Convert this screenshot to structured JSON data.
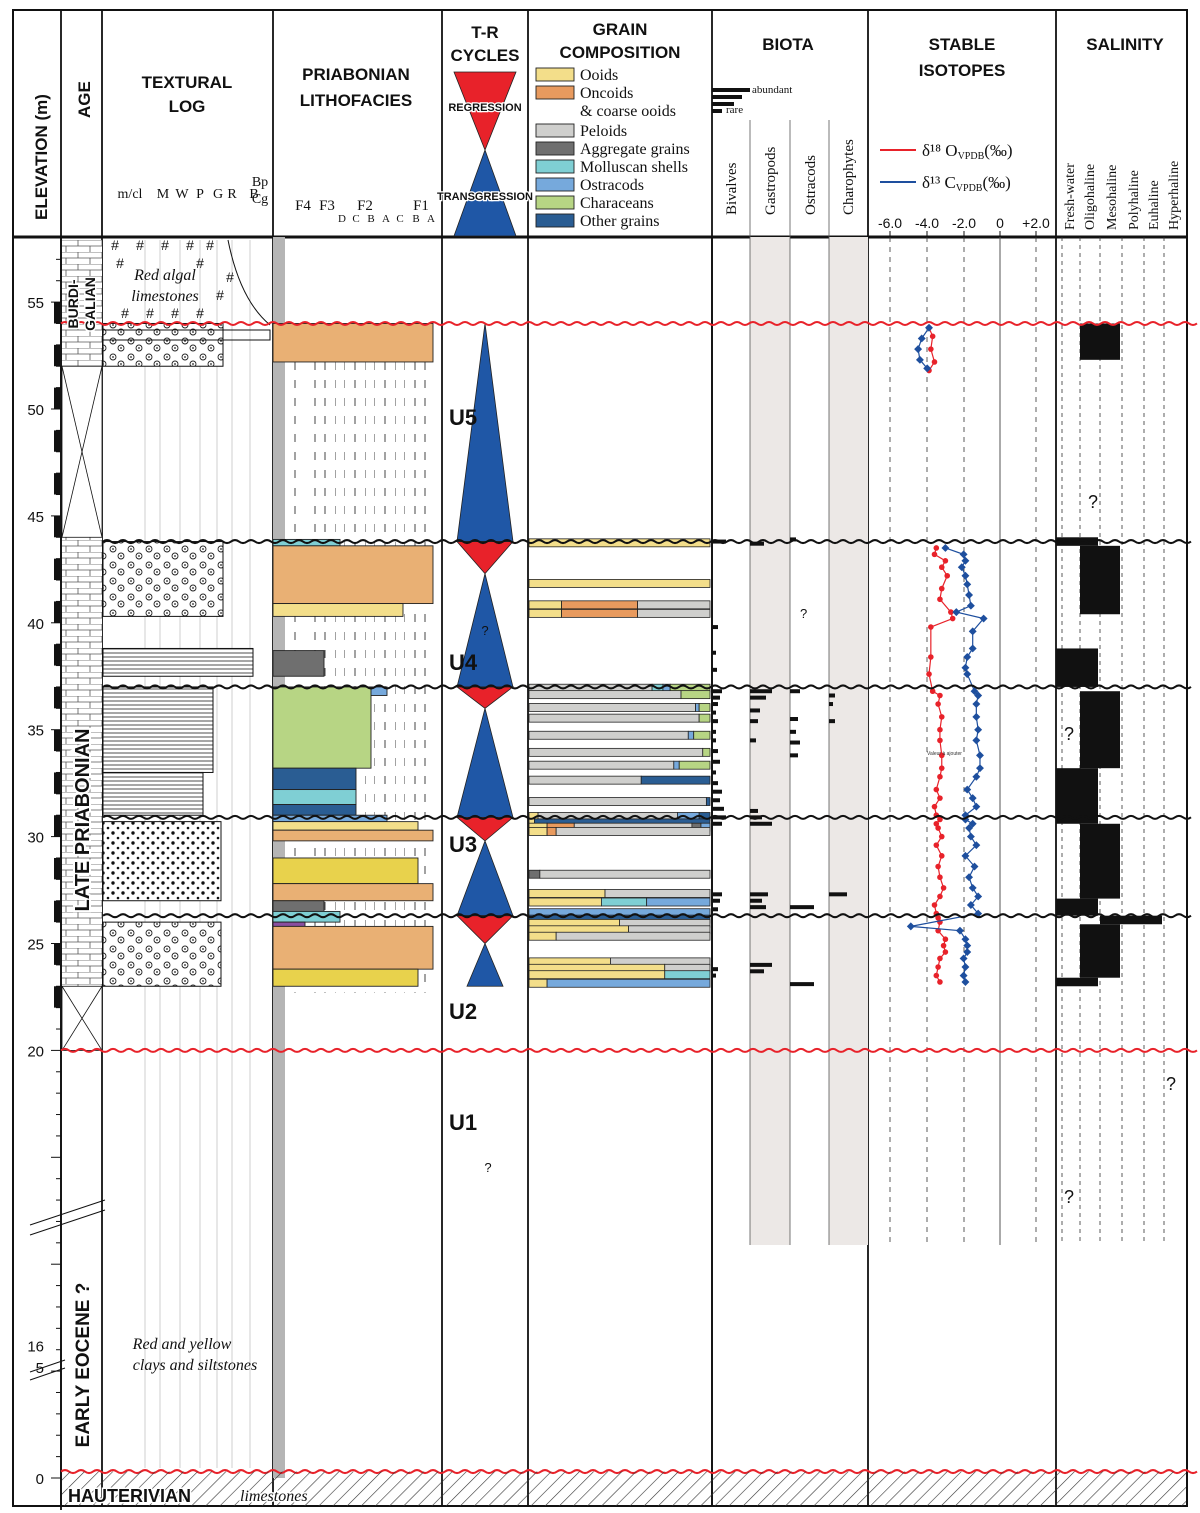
{
  "headers": {
    "elevation": "ELEVATION (m)",
    "age": "AGE",
    "textural_log": [
      "TEXTURAL",
      "LOG"
    ],
    "lithofacies": [
      "PRIABONIAN",
      "LITHOFACIES"
    ],
    "tr_cycles": [
      "T-R",
      "CYCLES"
    ],
    "grain_composition": [
      "GRAIN",
      "COMPOSITION"
    ],
    "biota": "BIOTA",
    "stable_isotopes": [
      "STABLE",
      "ISOTOPES"
    ],
    "salinity": "SALINITY"
  },
  "tr_legend": {
    "regression": "REGRESSION",
    "transgression": "TRANSGRESSION"
  },
  "textural_columns": [
    "m/cl",
    "M",
    "W",
    "P",
    "G",
    "R",
    "B"
  ],
  "textural_extra": [
    "Bp",
    "Cg"
  ],
  "facies_columns": {
    "top": [
      "F4",
      "F3",
      "F2",
      "F1"
    ],
    "sub": [
      "D",
      "C",
      "B",
      "A",
      "C",
      "B",
      "A"
    ]
  },
  "grain_legend": [
    {
      "label": "Ooids",
      "color": "#f3de8a"
    },
    {
      "label": "Oncoids\n& coarse ooids",
      "color": "#e89a5e"
    },
    {
      "label": "Peloids",
      "color": "#cfcfcd"
    },
    {
      "label": "Aggregate grains",
      "color": "#6f6f6f"
    },
    {
      "label": "Molluscan shells",
      "color": "#7fcfd4"
    },
    {
      "label": "Ostracods",
      "color": "#76a9dc"
    },
    {
      "label": "Characeans",
      "color": "#b7d584"
    },
    {
      "label": "Other grains",
      "color": "#2a5d93"
    }
  ],
  "biota": {
    "abundance": [
      "abundant",
      "rare"
    ],
    "columns": [
      "Bivalves",
      "Gastropods",
      "Ostracods",
      "Charophytes"
    ]
  },
  "isotopes": {
    "legend_o": "δ¹⁸ O",
    "legend_o_sub": "VPDB",
    "legend_c": "δ¹³ C",
    "legend_c_sub": "VPDB",
    "legend_unit": "(‰)",
    "ticks": [
      "-6.0",
      "-4.0",
      "-2.0",
      "0",
      "+2.0"
    ],
    "o_color": "#e8222a",
    "c_color": "#1e4f9e",
    "stray_label": "Valeur à ajouter"
  },
  "salinity_columns": [
    "Fresh-water",
    "Oligohaline",
    "Mesohaline",
    "Polyhaline",
    "Euhaline",
    "Hyperhaline"
  ],
  "elevation_ticks": [
    "0",
    "5",
    "16",
    "20",
    "25",
    "30",
    "35",
    "40",
    "45",
    "50",
    "55"
  ],
  "ages": {
    "burdigalian": [
      "BURDI-",
      "GALIAN"
    ],
    "late_priabonian": "LATE PRIABONIAN",
    "early_eocene": "EARLY EOCENE ?",
    "hauterivian": "HAUTERIVIAN"
  },
  "annotations": {
    "red_algal": [
      "Red algal",
      "limestones"
    ],
    "red_yellow": [
      "Red and yellow",
      "clays and siltstones"
    ],
    "limestones": "limestones"
  },
  "units": [
    "U5",
    "U4",
    "U3",
    "U2",
    "U1"
  ],
  "question_mark": "?",
  "colors": {
    "unconformity_red": "#e8222a",
    "tr_red": "#e8222a",
    "tr_blue": "#1f57a6",
    "biota_shade": "#ece8e6"
  },
  "chart_data": {
    "type": "scatter",
    "title": "",
    "xlabel": "",
    "ylabel": "",
    "elevation_range": [
      0,
      58
    ],
    "isotope_xlim": [
      -7.0,
      3.0
    ],
    "series": [
      {
        "name": "δ18O VPDB (‰)",
        "points": [
          [
            -3.9,
            53.8
          ],
          [
            -3.7,
            53.4
          ],
          [
            -3.8,
            52.8
          ],
          [
            -3.6,
            52.2
          ],
          [
            -3.9,
            51.8
          ],
          [
            -3.5,
            43.5
          ],
          [
            -3.6,
            43.2
          ],
          [
            -3.0,
            42.9
          ],
          [
            -3.2,
            42.6
          ],
          [
            -2.9,
            42.2
          ],
          [
            -3.2,
            41.6
          ],
          [
            -3.3,
            41.1
          ],
          [
            -2.7,
            40.5
          ],
          [
            -2.6,
            40.2
          ],
          [
            -3.8,
            39.8
          ],
          [
            -3.8,
            38.4
          ],
          [
            -3.9,
            37.6
          ],
          [
            -3.7,
            36.8
          ],
          [
            -3.3,
            36.6
          ],
          [
            -3.4,
            36.2
          ],
          [
            -3.2,
            35.6
          ],
          [
            -3.3,
            35.0
          ],
          [
            -3.3,
            34.5
          ],
          [
            -3.2,
            33.8
          ],
          [
            -3.2,
            33.2
          ],
          [
            -3.3,
            32.8
          ],
          [
            -3.5,
            32.2
          ],
          [
            -3.3,
            31.8
          ],
          [
            -3.6,
            31.4
          ],
          [
            -3.5,
            31.0
          ],
          [
            -3.3,
            30.8
          ],
          [
            -3.5,
            30.6
          ],
          [
            -3.4,
            30.4
          ],
          [
            -3.2,
            30.0
          ],
          [
            -3.5,
            29.6
          ],
          [
            -3.2,
            29.1
          ],
          [
            -3.4,
            28.6
          ],
          [
            -3.3,
            28.1
          ],
          [
            -3.1,
            27.6
          ],
          [
            -3.3,
            27.2
          ],
          [
            -3.6,
            26.8
          ],
          [
            -3.5,
            26.4
          ],
          [
            -3.4,
            26.2
          ],
          [
            -3.3,
            26.0
          ],
          [
            -3.4,
            25.6
          ],
          [
            -3.0,
            25.2
          ],
          [
            -3.1,
            24.9
          ],
          [
            -3.0,
            24.6
          ],
          [
            -3.3,
            24.3
          ],
          [
            -3.4,
            23.9
          ],
          [
            -3.5,
            23.5
          ],
          [
            -3.3,
            23.2
          ]
        ]
      },
      {
        "name": "δ13C VPDB (‰)",
        "points": [
          [
            -3.9,
            53.8
          ],
          [
            -4.3,
            53.3
          ],
          [
            -4.5,
            52.8
          ],
          [
            -4.4,
            52.3
          ],
          [
            -4.0,
            51.9
          ],
          [
            -3.0,
            43.5
          ],
          [
            -2.0,
            43.2
          ],
          [
            -1.9,
            42.9
          ],
          [
            -2.1,
            42.6
          ],
          [
            -1.9,
            42.2
          ],
          [
            -1.8,
            41.8
          ],
          [
            -1.7,
            41.3
          ],
          [
            -1.6,
            40.8
          ],
          [
            -2.4,
            40.5
          ],
          [
            -0.9,
            40.2
          ],
          [
            -1.5,
            39.6
          ],
          [
            -1.5,
            38.8
          ],
          [
            -1.8,
            38.4
          ],
          [
            -1.9,
            37.9
          ],
          [
            -1.8,
            37.6
          ],
          [
            -1.4,
            36.8
          ],
          [
            -1.2,
            36.6
          ],
          [
            -1.3,
            36.2
          ],
          [
            -1.3,
            35.6
          ],
          [
            -1.2,
            35.0
          ],
          [
            -1.3,
            34.5
          ],
          [
            -1.1,
            33.8
          ],
          [
            -1.1,
            33.2
          ],
          [
            -1.3,
            32.8
          ],
          [
            -1.8,
            32.2
          ],
          [
            -1.5,
            31.8
          ],
          [
            -1.3,
            31.4
          ],
          [
            -1.9,
            31.0
          ],
          [
            -1.9,
            30.8
          ],
          [
            -1.5,
            30.6
          ],
          [
            -1.7,
            30.4
          ],
          [
            -1.6,
            30.0
          ],
          [
            -1.3,
            29.6
          ],
          [
            -1.9,
            29.1
          ],
          [
            -1.4,
            28.6
          ],
          [
            -1.7,
            28.1
          ],
          [
            -1.5,
            27.6
          ],
          [
            -1.2,
            27.2
          ],
          [
            -1.6,
            26.8
          ],
          [
            -1.2,
            26.4
          ],
          [
            -4.9,
            25.8
          ],
          [
            -2.2,
            25.6
          ],
          [
            -1.9,
            25.2
          ],
          [
            -1.8,
            24.9
          ],
          [
            -1.8,
            24.6
          ],
          [
            -2.0,
            24.3
          ],
          [
            -1.9,
            23.9
          ],
          [
            -2.0,
            23.5
          ],
          [
            -1.9,
            23.2
          ]
        ]
      }
    ]
  }
}
